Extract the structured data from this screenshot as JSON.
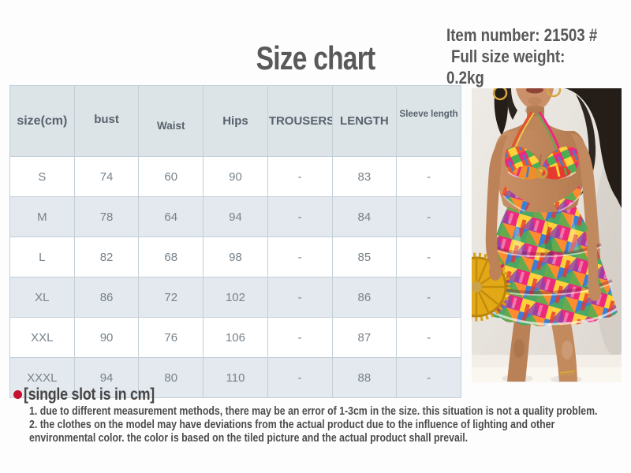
{
  "header": {
    "title": "Size chart",
    "item_info": {
      "line1": "Item number: 21503 #",
      "line2": "Full size weight:",
      "line3": "0.2kg"
    }
  },
  "size_table": {
    "columns": [
      "size(cm)",
      "bust",
      "Waist",
      "Hips",
      "TROUSERS",
      "LENGTH",
      "Sleeve length"
    ],
    "rows": [
      {
        "label": "S",
        "values": [
          "74",
          "60",
          "90",
          "-",
          "83",
          "-"
        ]
      },
      {
        "label": "M",
        "values": [
          "78",
          "64",
          "94",
          "-",
          "84",
          "-"
        ]
      },
      {
        "label": "L",
        "values": [
          "82",
          "68",
          "98",
          "-",
          "85",
          "-"
        ]
      },
      {
        "label": "XL",
        "values": [
          "86",
          "72",
          "102",
          "-",
          "86",
          "-"
        ]
      },
      {
        "label": "XXL",
        "values": [
          "90",
          "76",
          "106",
          "-",
          "87",
          "-"
        ]
      },
      {
        "label": "XXXL",
        "values": [
          "94",
          "80",
          "110",
          "-",
          "88",
          "-"
        ]
      }
    ],
    "colors": {
      "header_bg": "#dde4e8",
      "row_alt_bg": "#e3e9ee",
      "border": "#c3cfd7",
      "text": "#78828a"
    }
  },
  "notes": {
    "bullet_color": "#c8102e",
    "heading": "[single slot is in cm]",
    "lines": [
      "1. due to different measurement methods, there may be an error of 1-3cm in the size. this situation is not a quality problem.",
      "2. the clothes on the model may have deviations from the actual product due to the influence of lighting and other",
      "environmental color. the color is based on the tiled picture and the actual product shall prevail."
    ]
  },
  "photo": {
    "description": "model wearing multicolor ruffled halter mini dress with cutout, holding round yellow straw bag",
    "palette": {
      "dress": [
        "#f2552c",
        "#ec2a7c",
        "#ffd23c",
        "#ff8c2e",
        "#4cae52",
        "#3a7fd5",
        "#8d44ad",
        "#e6392f"
      ],
      "bag": "#e3a816",
      "skin": "#c68f63",
      "hair": "#241d18",
      "wall": "#e9e5e0"
    }
  }
}
